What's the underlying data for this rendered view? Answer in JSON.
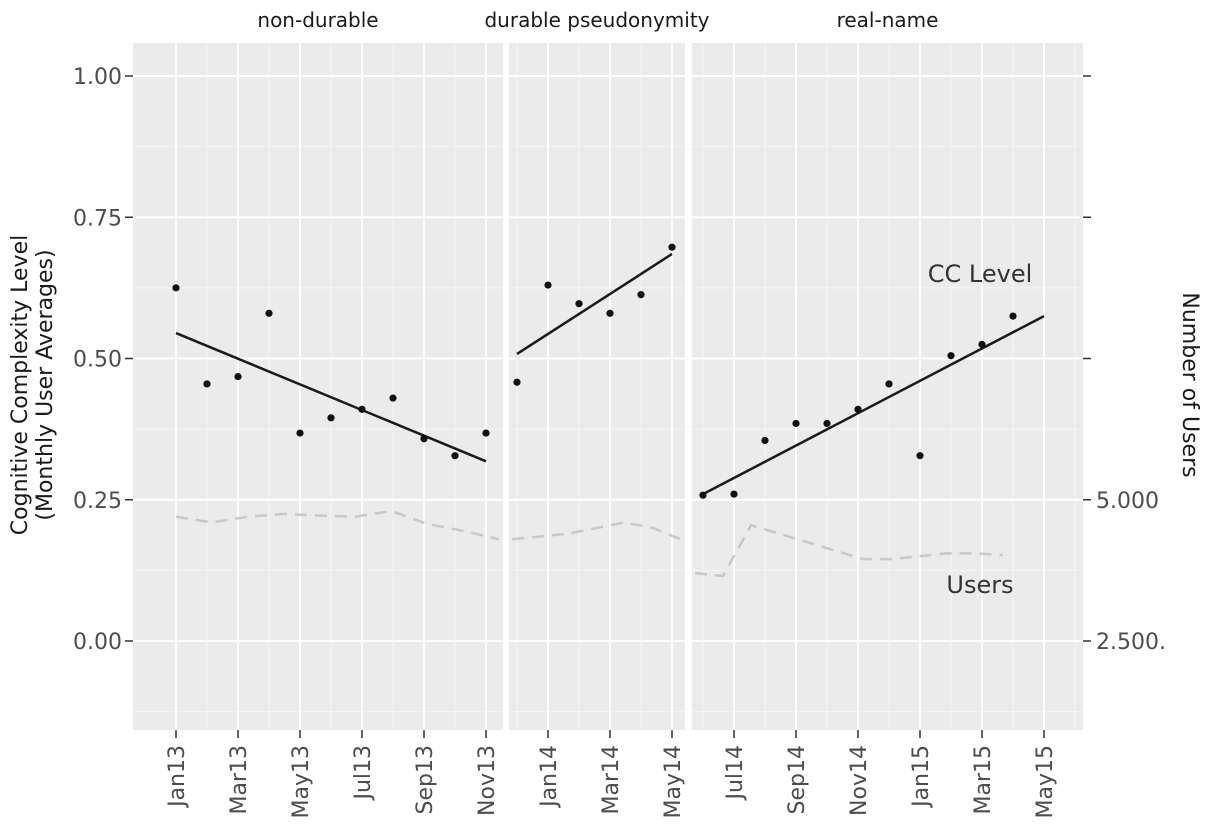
{
  "chart_data": {
    "type": "line",
    "left_axis": {
      "title": [
        "Cognitive Complexity Level",
        "(Monthly User Averages)"
      ],
      "ticks": [
        0.0,
        0.25,
        0.5,
        0.75,
        1.0
      ],
      "tick_labels": [
        "0.00",
        "0.25",
        "0.50",
        "0.75",
        "1.00"
      ],
      "ylim": [
        -0.15,
        1.06
      ]
    },
    "right_axis": {
      "title": "Number of Users",
      "tick_labels": [
        "",
        "",
        "",
        "5.000",
        "2.500."
      ]
    },
    "x_axis": {
      "tick_labels": [
        "Jan13",
        "Mar13",
        "May13",
        "Jul13",
        "Sep13",
        "Nov13",
        "Jan14",
        "Mar14",
        "May14",
        "Jul14",
        "Sep14",
        "Nov14",
        "Jan15",
        "Mar15",
        "May15"
      ]
    },
    "colors": {
      "panel_bg": "#ebebeb",
      "grid_major": "#ffffff",
      "points": "#111111",
      "trend": "#1a1a1a",
      "users_line": "#c8c8c8"
    },
    "panels": [
      {
        "label": "non-durable",
        "months": [
          "2013-01",
          "2013-02",
          "2013-03",
          "2013-04",
          "2013-05",
          "2013-06",
          "2013-07",
          "2013-08",
          "2013-09",
          "2013-10",
          "2013-11"
        ],
        "cc_level": [
          0.625,
          0.455,
          0.468,
          0.58,
          0.368,
          0.395,
          0.41,
          0.43,
          0.358,
          0.328,
          0.368
        ],
        "trend": {
          "start": [
            "2013-01",
            0.545
          ],
          "end": [
            "2013-11",
            0.318
          ]
        },
        "users": [
          0.22,
          0.21,
          0.22,
          0.225,
          0.222,
          0.22,
          0.23,
          0.207,
          0.195,
          0.18
        ]
      },
      {
        "label": "durable pseudonymity",
        "months": [
          "2013-12",
          "2014-01",
          "2014-02",
          "2014-03",
          "2014-04",
          "2014-05"
        ],
        "cc_level": [
          0.458,
          0.63,
          0.597,
          0.58,
          0.613,
          0.697
        ],
        "trend": {
          "start": [
            "2013-12",
            0.508
          ],
          "end": [
            "2014-05",
            0.685
          ]
        },
        "users": [
          0.18,
          0.185,
          0.19,
          0.2,
          0.21,
          0.2,
          0.18
        ]
      },
      {
        "label": "real-name",
        "months": [
          "2014-06",
          "2014-07",
          "2014-08",
          "2014-09",
          "2014-10",
          "2014-11",
          "2014-12",
          "2015-01",
          "2015-02",
          "2015-03",
          "2015-04"
        ],
        "cc_level": [
          0.258,
          0.26,
          0.355,
          0.385,
          0.385,
          0.41,
          0.455,
          0.328,
          0.505,
          0.525,
          0.575
        ],
        "trend": {
          "start": [
            "2014-06",
            0.26
          ],
          "end": [
            "2015-05",
            0.575
          ]
        },
        "users": [
          0.12,
          0.115,
          0.205,
          0.19,
          0.175,
          0.16,
          0.145,
          0.145,
          0.15,
          0.155,
          0.155,
          0.152
        ]
      }
    ],
    "annotations": {
      "cc_label": "CC Level",
      "users_label": "Users"
    }
  }
}
